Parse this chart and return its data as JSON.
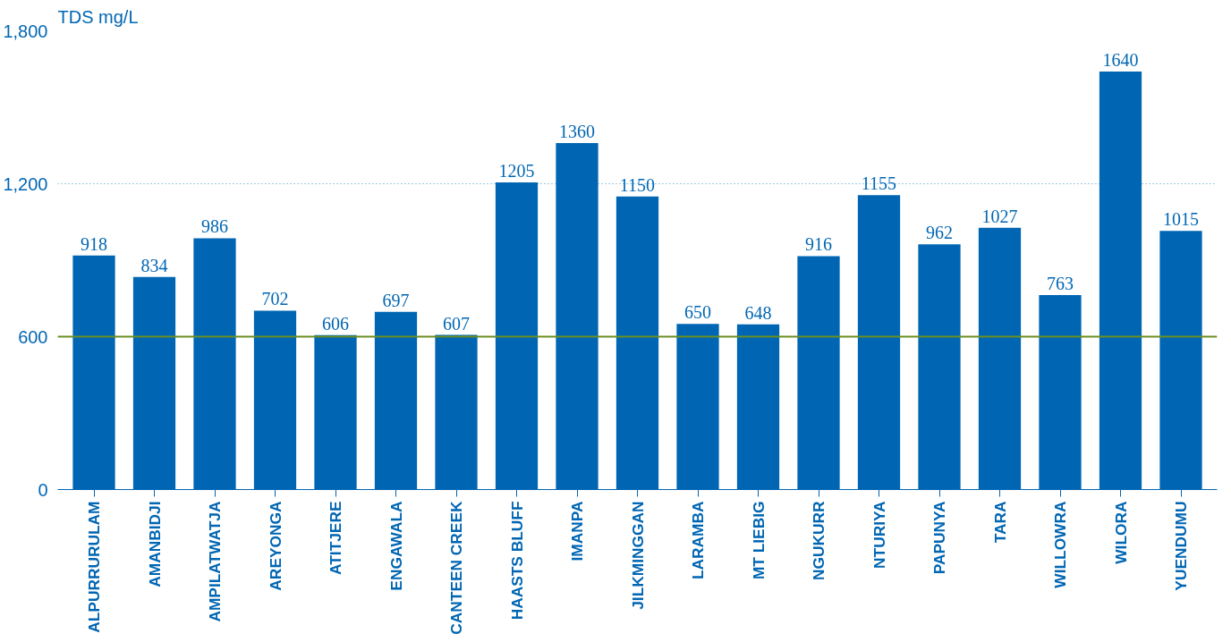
{
  "chart_data": {
    "type": "bar",
    "ylabel": "TDS mg/L",
    "categories": [
      "ALPURRURULAM",
      "AMANBIDJI",
      "AMPILATWATJA",
      "AREYONGA",
      "ATITJERE",
      "ENGAWALA",
      "CANTEEN CREEK",
      "HAASTS BLUFF",
      "IMANPA",
      "JILKMINGGAN",
      "LARAMBA",
      "MT LIEBIG",
      "NGUKURR",
      "NTURIYA",
      "PAPUNYA",
      "TARA",
      "WILLOWRA",
      "WILORA",
      "YUENDUMU"
    ],
    "values": [
      918,
      834,
      986,
      702,
      606,
      697,
      607,
      1205,
      1360,
      1150,
      650,
      648,
      916,
      1155,
      962,
      1027,
      763,
      1640,
      1015
    ],
    "color": "#0066b3",
    "ylim": [
      0,
      1800
    ],
    "yticks": [
      0,
      {
        "value": 600,
        "label": "600"
      },
      {
        "value": 1200,
        "label": "1,200"
      },
      {
        "value": 1800,
        "label": "1,800"
      }
    ],
    "grid": "y",
    "data_labels": true,
    "ref_lines": [
      {
        "axis": "y",
        "value": 600,
        "label": null,
        "color": "#6b8e23"
      }
    ]
  }
}
